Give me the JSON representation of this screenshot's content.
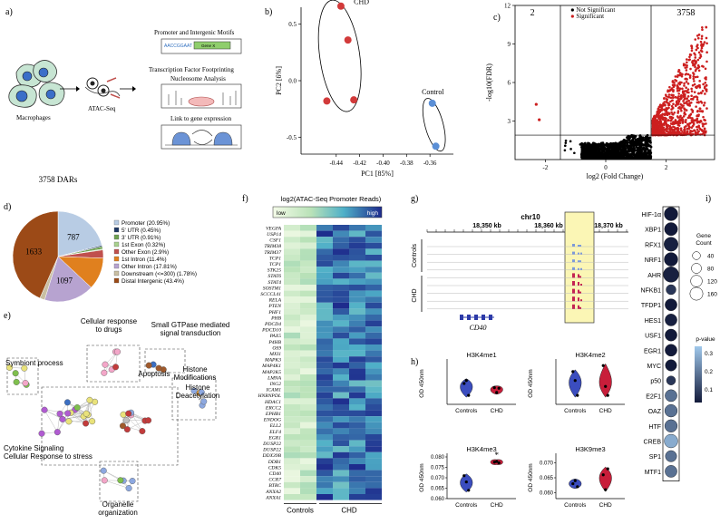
{
  "panel_labels": {
    "a": "a)",
    "b": "b)",
    "c": "c)",
    "d": "d)",
    "e": "e)",
    "f": "f)",
    "g": "g)",
    "h": "h)",
    "i": "i)"
  },
  "panel_a": {
    "macrophages": "Macrophages",
    "atac": "ATAC-Seq",
    "step1": "Promoter and Intergenic Motifs",
    "step2": "Transcription Factor Footprinting",
    "step3": "Nucleosome Analysis",
    "step4": "Link to gene expression",
    "motif_text": "AACCGGAAT",
    "gene_text": "Gene X"
  },
  "pca": {
    "chart_data": {
      "type": "scatter",
      "xlabel": "PC1 [85%]",
      "ylabel": "PC2 [6%]",
      "xlim": [
        -0.47,
        -0.34
      ],
      "ylim": [
        -0.65,
        0.65
      ],
      "xticks": [
        -0.44,
        -0.42,
        -0.4,
        -0.38,
        -0.36
      ],
      "xtick_labels": [
        "-0.44",
        "-0.42",
        "-0.40",
        "-0.38",
        "-0.36"
      ],
      "yticks": [
        -0.5,
        0.0,
        0.5
      ],
      "ytick_labels": [
        "-0.5",
        "0.0",
        "0.5"
      ],
      "series": [
        {
          "name": "CHD",
          "color": "#d23a3a",
          "points": [
            [
              -0.436,
              0.66
            ],
            [
              -0.43,
              0.36
            ],
            [
              -0.448,
              -0.18
            ],
            [
              -0.425,
              -0.17
            ]
          ]
        },
        {
          "name": "Control",
          "color": "#5b8fd6",
          "points": [
            [
              -0.358,
              -0.2
            ],
            [
              -0.355,
              -0.58
            ]
          ]
        }
      ],
      "annotations": [
        "CHD",
        "Control"
      ]
    }
  },
  "volcano": {
    "chart_data": {
      "type": "scatter",
      "xlabel": "log2 (Fold Change)",
      "ylabel": "-log10(FDR)",
      "xlim": [
        -3,
        3.6
      ],
      "ylim": [
        0,
        12
      ],
      "xticks": [
        -2,
        0,
        2
      ],
      "xtick_labels": [
        "-2",
        "0",
        "2"
      ],
      "yticks": [
        3,
        6,
        9,
        12
      ],
      "ytick_labels": [
        "3",
        "6",
        "9",
        "12"
      ],
      "fc_threshold": [
        -1.5,
        1.5
      ],
      "fdr_threshold": 1.9,
      "legend": [
        "Not Significant",
        "Significant"
      ],
      "count_down": "2",
      "count_up": "3758",
      "colors": {
        "ns": "#000000",
        "sig": "#cc1f1f"
      }
    }
  },
  "pie": {
    "chart_data": {
      "type": "pie",
      "title": "3758 DARs",
      "slices": [
        {
          "label": "Promoter (20.95%)",
          "value": 20.95,
          "color": "#b8cce4"
        },
        {
          "label": "5' UTR (0.45%)",
          "value": 0.45,
          "color": "#1f3864"
        },
        {
          "label": "3' UTR (0.91%)",
          "value": 0.91,
          "color": "#6ea150"
        },
        {
          "label": "1st Exon (0.32%)",
          "value": 0.32,
          "color": "#a9d18e"
        },
        {
          "label": "Other Exon (2.9%)",
          "value": 2.9,
          "color": "#c0504d"
        },
        {
          "label": "1st Intron (11.4%)",
          "value": 11.4,
          "color": "#e0801e"
        },
        {
          "label": "Other Intron (17.81%)",
          "value": 17.81,
          "color": "#b7a3d0"
        },
        {
          "label": "Downstream (<=300) (1.78%)",
          "value": 1.78,
          "color": "#c9bfa3"
        },
        {
          "label": "Distal Intergenic (43.4%)",
          "value": 43.4,
          "color": "#9c4a17"
        }
      ],
      "data_labels": [
        {
          "text": "787",
          "slice": 0
        },
        {
          "text": "1097",
          "slice": 6
        },
        {
          "text": "1633",
          "slice": 8
        }
      ]
    }
  },
  "network": {
    "labels": [
      "Cellular response to drugs",
      "Symbiont process",
      "Small GTPase mediated signal transduction",
      "Apoptosis",
      "Histone Modifications",
      "Cytokine Signaling Cellular Response to stress",
      "Histone Deacetylation",
      "Organelle organization"
    ]
  },
  "heatmap": {
    "chart_data": {
      "type": "heatmap",
      "title": "log2(ATAC-Seq Promoter Reads)",
      "scale_low": "low",
      "scale_high": "high",
      "genes": [
        "VEGFA",
        "USP14",
        "CSF1",
        "TRIM38",
        "TRIM37",
        "TCP1",
        "TCP1",
        "STK25",
        "STAT6",
        "STAT4",
        "SOSTM1",
        "SCCCL41",
        "RELA",
        "PTEN",
        "PHF1",
        "PHB",
        "PDCD4",
        "PDCD10",
        "PAX5",
        "P4HB",
        "OS9",
        "MXI1",
        "MAPK3",
        "MAP4K1",
        "MAP2K5",
        "LMNA",
        "ING2",
        "ICAM1",
        "HNRNPDL",
        "HDAC1",
        "ERCC2",
        "EPHB1",
        "ENDOG",
        "ELL2",
        "ELF4",
        "EGR1",
        "DUSP22",
        "DUSP22",
        "DDX39B",
        "DDB1",
        "CDK5",
        "CD40",
        "CCR7",
        "BTRC",
        "ANXA2",
        "ANXA1"
      ],
      "groups": [
        "Controls",
        "CHD"
      ],
      "n_controls": 2,
      "n_chd": 4
    }
  },
  "tracks": {
    "chrom": "chr10",
    "ticks": [
      "18,350 kb",
      "18,360 kb",
      "18,370 kb"
    ],
    "groups": [
      "Controls",
      "CHD"
    ],
    "gene": "CD40"
  },
  "violins": {
    "chart_data": [
      {
        "type": "violin",
        "title": "H3K4me1",
        "ylabel": "OD 450nm",
        "categories": [
          "Controls",
          "CHD"
        ],
        "ylim": [
          0.055,
          0.125
        ],
        "values": [
          [
            0.09,
            0.095,
            0.07
          ],
          [
            0.083,
            0.075,
            0.082
          ]
        ],
        "colors": [
          "#3b4dbf",
          "#c81e3a"
        ]
      },
      {
        "type": "violin",
        "title": "H3K4me2",
        "ylabel": "OD 450nm",
        "categories": [
          "Controls",
          "CHD"
        ],
        "ylim": [
          0.055,
          0.125
        ],
        "values": [
          [
            0.11,
            0.095,
            0.07
          ],
          [
            0.12,
            0.085,
            0.07
          ]
        ],
        "colors": [
          "#3b4dbf",
          "#c81e3a"
        ]
      },
      {
        "type": "violin",
        "title": "H3K4me3",
        "ylabel": "OD 450nm",
        "categories": [
          "Controls",
          "CHD"
        ],
        "ylim": [
          0.06,
          0.08
        ],
        "yticks": [
          0.06,
          0.065,
          0.07,
          0.075,
          0.08
        ],
        "ytick_labels": [
          "0.060",
          "0.065",
          "0.070",
          "0.075",
          "0.080"
        ],
        "values": [
          [
            0.071,
            0.068,
            0.064
          ],
          [
            0.0775,
            0.0778,
            0.0772
          ]
        ],
        "colors": [
          "#3b4dbf",
          "#c81e3a"
        ],
        "significance": "*"
      },
      {
        "type": "violin",
        "title": "H3K9me3",
        "ylabel": "OD 450nm",
        "categories": [
          "Controls",
          "CHD"
        ],
        "ylim": [
          0.058,
          0.072
        ],
        "yticks": [
          0.06,
          0.065,
          0.07
        ],
        "ytick_labels": [
          "0.060",
          "0.065",
          "0.070"
        ],
        "values": [
          [
            0.063,
            0.064,
            0.062
          ],
          [
            0.066,
            0.061,
            0.068
          ]
        ],
        "colors": [
          "#3b4dbf",
          "#c81e3a"
        ]
      }
    ]
  },
  "dotplot": {
    "chart_data": {
      "type": "scatter",
      "tfs": [
        "HIF-1α",
        "XBP1",
        "RFX1",
        "NRF1",
        "AHR",
        "NFKB1",
        "TFDP1",
        "HES1",
        "USF1",
        "EGR1",
        "MYC",
        "p50",
        "E2F1",
        "OAZ",
        "HTF",
        "CREB",
        "SP1",
        "MTF1"
      ],
      "gene_count": [
        100,
        90,
        110,
        100,
        140,
        40,
        70,
        70,
        70,
        70,
        60,
        30,
        70,
        80,
        80,
        100,
        60,
        70
      ],
      "pvalue": [
        0.05,
        0.05,
        0.06,
        0.05,
        0.06,
        0.1,
        0.05,
        0.06,
        0.05,
        0.05,
        0.05,
        0.1,
        0.2,
        0.2,
        0.2,
        0.3,
        0.2,
        0.2
      ],
      "legend_title": "Gene Count",
      "legend_values": [
        "40",
        "80",
        "120",
        "160"
      ],
      "legend_counts": [
        40,
        80,
        120,
        160
      ],
      "pvalue_title": "p-value",
      "pvalue_ticks": [
        "0.3",
        "0.2",
        "0.1"
      ]
    }
  }
}
